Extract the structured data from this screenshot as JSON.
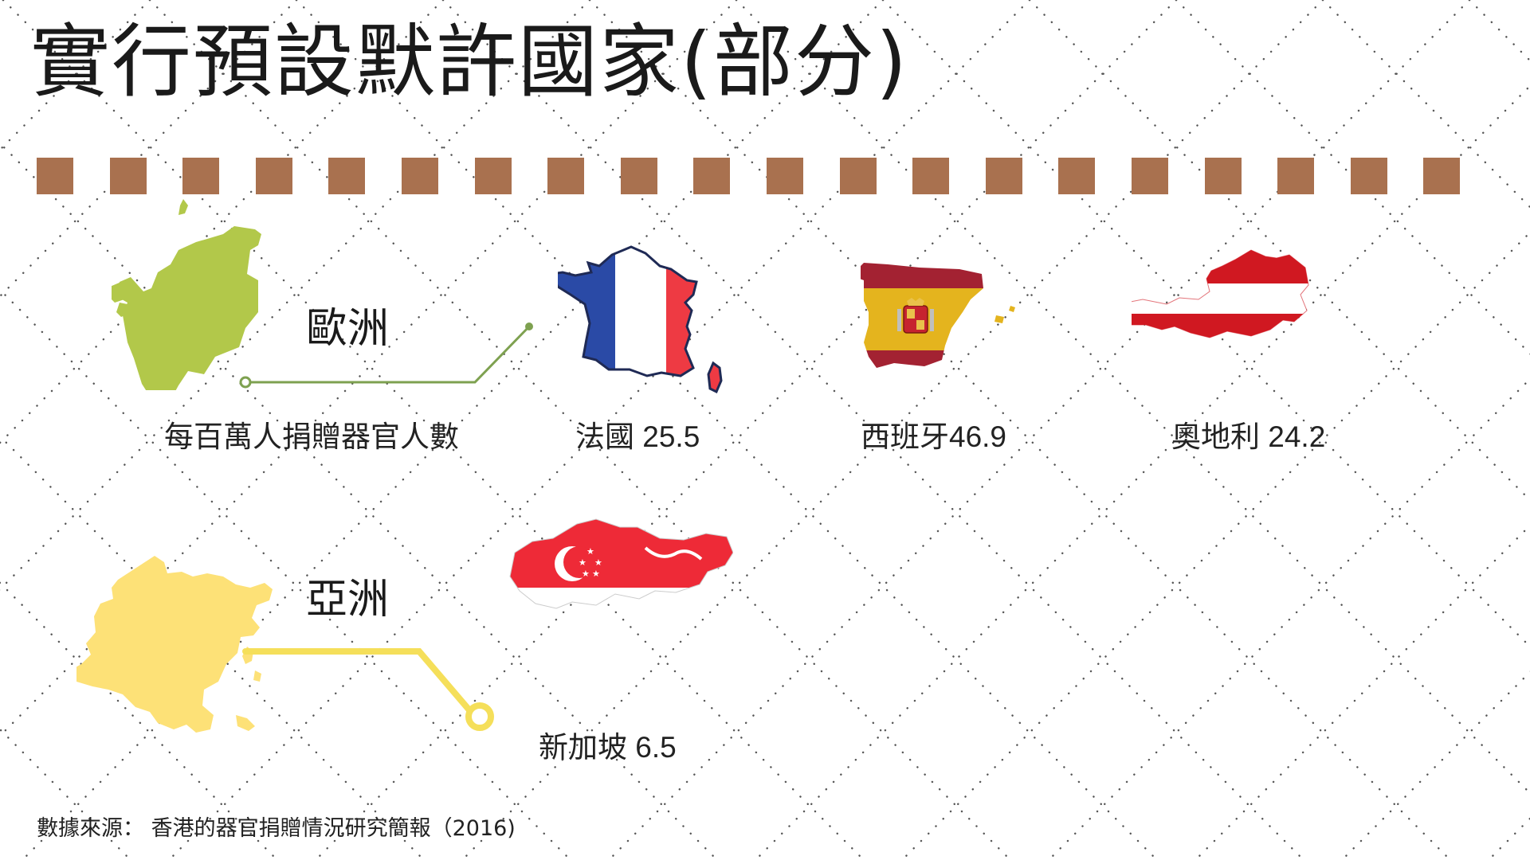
{
  "title": "實行預設默許國家(部分)",
  "colors": {
    "dash": "#a9714f",
    "europe": "#b2c84a",
    "asia": "#fde177",
    "europe_line": "#7ea150",
    "asia_line": "#f5df5a",
    "france_blue": "#2a4aa6",
    "france_red": "#ee3a43",
    "spain_red": "#a32232",
    "spain_yellow": "#e4b41e",
    "austria_red": "#d01821",
    "singapore_red": "#ee2a37"
  },
  "europe": {
    "label": "歐洲",
    "metric_label": "每百萬人捐贈器官人數",
    "countries": [
      {
        "name": "法國 25.5",
        "value": 25.5,
        "icon": "france-flag-map"
      },
      {
        "name": "西班牙46.9",
        "value": 46.9,
        "icon": "spain-flag-map"
      },
      {
        "name": "奧地利 24.2",
        "value": 24.2,
        "icon": "austria-flag-map"
      }
    ]
  },
  "asia": {
    "label": "亞洲",
    "countries": [
      {
        "name": "新加坡 6.5",
        "value": 6.5,
        "icon": "singapore-flag-map"
      }
    ]
  },
  "source": "數據來源： 香港的器官捐贈情況研究簡報（2016)"
}
